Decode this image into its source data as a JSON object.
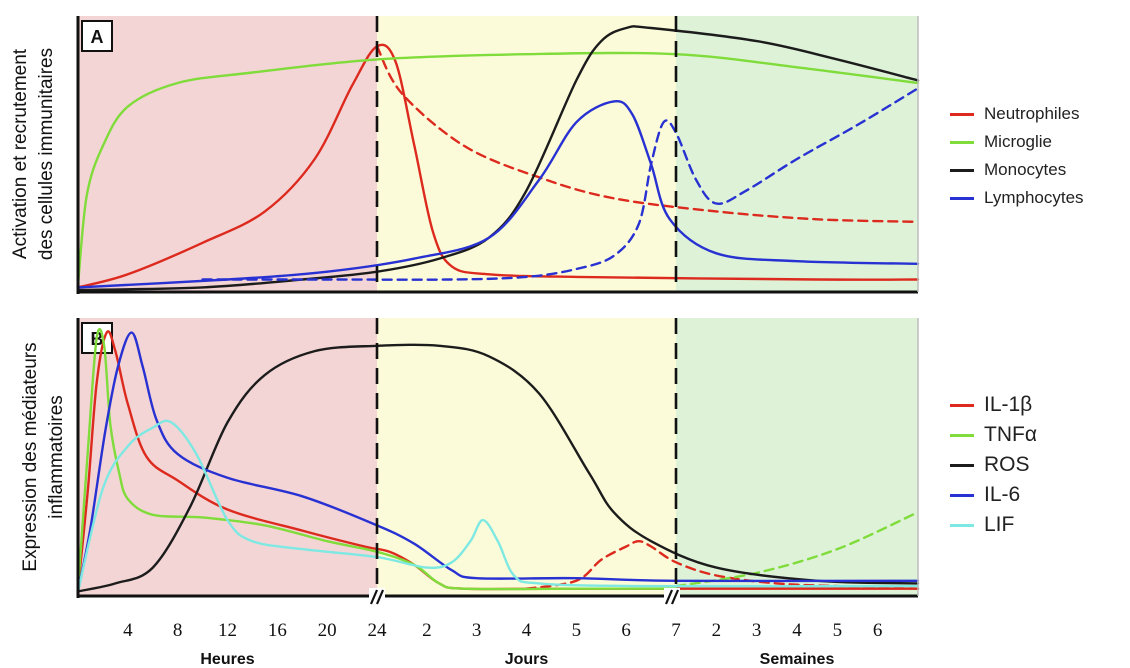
{
  "chart_data": [
    {
      "panel_label": "A",
      "type": "line",
      "ylabel": "Activation et recrutement des cellules immunitaires",
      "x_segments": [
        {
          "label": "Heures",
          "ticks": [
            4,
            8,
            12,
            16,
            20,
            24
          ]
        },
        {
          "label": "Jours",
          "ticks": [
            2,
            3,
            4,
            5,
            6,
            7
          ]
        },
        {
          "label": "Semaines",
          "ticks": [
            2,
            3,
            4,
            5,
            6
          ]
        }
      ],
      "background_colors": {
        "Heures": "#f3d5d5",
        "Jours": "#fcfbd9",
        "Semaines": "#ddf2d7"
      },
      "series": [
        {
          "name": "Neutrophiles",
          "color": "#dd2a1e",
          "style": "solid",
          "points": [
            [
              0,
              0.01
            ],
            [
              4,
              0.06
            ],
            [
              10,
              0.18
            ],
            [
              15,
              0.3
            ],
            [
              19,
              0.5
            ],
            [
              22,
              0.78
            ],
            [
              24,
              0.93
            ],
            [
              25.5,
              0.87
            ],
            [
              27,
              0.55
            ],
            [
              28.5,
              0.22
            ],
            [
              30,
              0.09
            ],
            [
              33,
              0.06
            ],
            [
              40,
              0.05
            ],
            [
              55,
              0.04
            ],
            [
              60,
              0.04
            ]
          ]
        },
        {
          "name": "Neutrophiles",
          "color": "#dd2a1e",
          "style": "dashed",
          "points": [
            [
              24,
              0.93
            ],
            [
              26,
              0.75
            ],
            [
              31,
              0.55
            ],
            [
              37,
              0.43
            ],
            [
              43,
              0.35
            ],
            [
              50,
              0.3
            ],
            [
              55,
              0.27
            ],
            [
              60,
              0.26
            ]
          ]
        },
        {
          "name": "Microglie",
          "color": "#7fdc3a",
          "style": "solid",
          "points": [
            [
              0,
              0.02
            ],
            [
              0.7,
              0.36
            ],
            [
              2,
              0.55
            ],
            [
              4,
              0.7
            ],
            [
              8,
              0.79
            ],
            [
              14,
              0.83
            ],
            [
              24,
              0.88
            ],
            [
              36,
              0.9
            ],
            [
              48,
              0.9
            ],
            [
              54,
              0.85
            ],
            [
              60,
              0.79
            ]
          ]
        },
        {
          "name": "Monocytes",
          "color": "#1c1c1c",
          "style": "solid",
          "points": [
            [
              0,
              0
            ],
            [
              10,
              0.01
            ],
            [
              18,
              0.04
            ],
            [
              24,
              0.07
            ],
            [
              29,
              0.12
            ],
            [
              33,
              0.2
            ],
            [
              36,
              0.38
            ],
            [
              40,
              0.8
            ],
            [
              42,
              0.95
            ],
            [
              44,
              1.0
            ],
            [
              46,
              1.0
            ],
            [
              52,
              0.95
            ],
            [
              56,
              0.88
            ],
            [
              60,
              0.8
            ]
          ]
        },
        {
          "name": "Lymphocytes",
          "color": "#2831d2",
          "style": "solid",
          "points": [
            [
              0,
              0.01
            ],
            [
              12,
              0.04
            ],
            [
              20,
              0.07
            ],
            [
              27,
              0.12
            ],
            [
              33,
              0.2
            ],
            [
              37,
              0.42
            ],
            [
              40,
              0.64
            ],
            [
              43,
              0.72
            ],
            [
              44.5,
              0.67
            ],
            [
              46,
              0.48
            ],
            [
              47.5,
              0.27
            ],
            [
              50,
              0.14
            ],
            [
              54,
              0.11
            ],
            [
              60,
              0.1
            ]
          ]
        },
        {
          "name": "Lymphocytes",
          "color": "#2831d2",
          "style": "dashed",
          "points": [
            [
              10,
              0.04
            ],
            [
              20,
              0.04
            ],
            [
              30,
              0.04
            ],
            [
              36,
              0.05
            ],
            [
              40,
              0.08
            ],
            [
              43,
              0.13
            ],
            [
              45,
              0.25
            ],
            [
              46,
              0.48
            ],
            [
              47,
              0.64
            ],
            [
              48,
              0.6
            ],
            [
              49,
              0.42
            ],
            [
              50,
              0.33
            ],
            [
              51.5,
              0.38
            ],
            [
              54,
              0.5
            ],
            [
              57,
              0.63
            ],
            [
              60,
              0.77
            ]
          ]
        }
      ],
      "legend": [
        "Neutrophiles",
        "Microglie",
        "Monocytes",
        "Lymphocytes"
      ],
      "legend_colors": [
        "#dd2a1e",
        "#7fdc3a",
        "#1c1c1c",
        "#2831d2"
      ]
    },
    {
      "panel_label": "B",
      "type": "line",
      "ylabel": "Expression des médiateurs inflammatoires",
      "x_segments": [
        {
          "label": "Heures",
          "ticks": [
            4,
            8,
            12,
            16,
            20,
            24
          ]
        },
        {
          "label": "Jours",
          "ticks": [
            2,
            3,
            4,
            5,
            6,
            7
          ]
        },
        {
          "label": "Semaines",
          "ticks": [
            2,
            3,
            4,
            5,
            6
          ]
        }
      ],
      "background_colors": {
        "Heures": "#f3d5d5",
        "Jours": "#fcfbd9",
        "Semaines": "#ddf2d7"
      },
      "series": [
        {
          "name": "IL-1β",
          "color": "#dd2a1e",
          "style": "solid",
          "points": [
            [
              0,
              0.02
            ],
            [
              0.8,
              0.4
            ],
            [
              1.5,
              0.8
            ],
            [
              2.3,
              0.99
            ],
            [
              3,
              0.92
            ],
            [
              4,
              0.72
            ],
            [
              5.5,
              0.52
            ],
            [
              8,
              0.43
            ],
            [
              12,
              0.32
            ],
            [
              18,
              0.24
            ],
            [
              23,
              0.18
            ],
            [
              25,
              0.16
            ],
            [
              27,
              0.11
            ],
            [
              29,
              0.04
            ],
            [
              31,
              0.02
            ],
            [
              40,
              0.02
            ],
            [
              60,
              0.02
            ]
          ]
        },
        {
          "name": "IL-1β",
          "color": "#dd2a1e",
          "style": "dashed",
          "points": [
            [
              36,
              0.02
            ],
            [
              40,
              0.05
            ],
            [
              42,
              0.13
            ],
            [
              44,
              0.18
            ],
            [
              45,
              0.2
            ],
            [
              46,
              0.18
            ],
            [
              48,
              0.12
            ],
            [
              50,
              0.07
            ],
            [
              53,
              0.04
            ],
            [
              56,
              0.03
            ],
            [
              60,
              0.02
            ]
          ]
        },
        {
          "name": "TNFα",
          "color": "#7fdc3a",
          "style": "solid",
          "points": [
            [
              0,
              0.02
            ],
            [
              0.8,
              0.55
            ],
            [
              1.5,
              0.97
            ],
            [
              2.1,
              0.94
            ],
            [
              2.6,
              0.64
            ],
            [
              3.3,
              0.46
            ],
            [
              4,
              0.36
            ],
            [
              6,
              0.3
            ],
            [
              10,
              0.29
            ],
            [
              15,
              0.26
            ],
            [
              20,
              0.2
            ],
            [
              24,
              0.16
            ],
            [
              27,
              0.11
            ],
            [
              29,
              0.04
            ],
            [
              31,
              0.02
            ],
            [
              40,
              0.02
            ],
            [
              48,
              0.02
            ]
          ]
        },
        {
          "name": "TNFα",
          "color": "#7fdc3a",
          "style": "dashed",
          "points": [
            [
              48,
              0.03
            ],
            [
              52,
              0.08
            ],
            [
              56,
              0.17
            ],
            [
              60,
              0.31
            ]
          ]
        },
        {
          "name": "ROS",
          "color": "#1c1c1c",
          "style": "solid",
          "points": [
            [
              0,
              0.01
            ],
            [
              3,
              0.04
            ],
            [
              6,
              0.1
            ],
            [
              9,
              0.33
            ],
            [
              12,
              0.65
            ],
            [
              15,
              0.83
            ],
            [
              19,
              0.92
            ],
            [
              24,
              0.94
            ],
            [
              29,
              0.94
            ],
            [
              33,
              0.9
            ],
            [
              37,
              0.76
            ],
            [
              41,
              0.46
            ],
            [
              43,
              0.31
            ],
            [
              46,
              0.2
            ],
            [
              50,
              0.1
            ],
            [
              55,
              0.05
            ],
            [
              60,
              0.04
            ]
          ]
        },
        {
          "name": "IL-6",
          "color": "#2831d2",
          "style": "solid",
          "points": [
            [
              0,
              0.01
            ],
            [
              1,
              0.25
            ],
            [
              2.2,
              0.62
            ],
            [
              3.2,
              0.86
            ],
            [
              4.3,
              0.99
            ],
            [
              5.2,
              0.86
            ],
            [
              6.3,
              0.66
            ],
            [
              8,
              0.53
            ],
            [
              12,
              0.44
            ],
            [
              18,
              0.37
            ],
            [
              24,
              0.26
            ],
            [
              27,
              0.19
            ],
            [
              30,
              0.09
            ],
            [
              32,
              0.06
            ],
            [
              40,
              0.06
            ],
            [
              48,
              0.05
            ],
            [
              60,
              0.05
            ]
          ]
        },
        {
          "name": "LIF",
          "color": "#7ee8e2",
          "style": "solid",
          "points": [
            [
              0,
              0.01
            ],
            [
              2,
              0.4
            ],
            [
              4,
              0.56
            ],
            [
              6,
              0.63
            ],
            [
              7.5,
              0.65
            ],
            [
              9.5,
              0.53
            ],
            [
              12,
              0.28
            ],
            [
              14,
              0.2
            ],
            [
              18,
              0.17
            ],
            [
              24,
              0.14
            ],
            [
              28,
              0.1
            ],
            [
              30,
              0.12
            ],
            [
              31.5,
              0.2
            ],
            [
              32.5,
              0.28
            ],
            [
              33.7,
              0.2
            ],
            [
              35,
              0.07
            ],
            [
              37,
              0.04
            ],
            [
              45,
              0.03
            ],
            [
              60,
              0.03
            ]
          ]
        }
      ],
      "legend": [
        "IL-1β",
        "TNFα",
        "ROS",
        "IL-6",
        "LIF"
      ],
      "legend_colors": [
        "#dd2a1e",
        "#7fdc3a",
        "#1c1c1c",
        "#2831d2",
        "#7ee8e2"
      ]
    }
  ]
}
